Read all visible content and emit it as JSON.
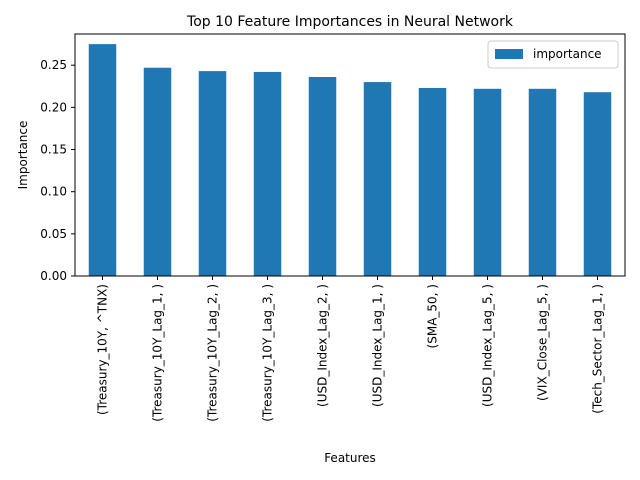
{
  "chart_data": {
    "type": "bar",
    "title": "Top 10 Feature Importances in Neural Network",
    "xlabel": "Features",
    "ylabel": "Importance",
    "ylim": [
      0,
      0.287
    ],
    "yticks": [
      "0.00",
      "0.05",
      "0.10",
      "0.15",
      "0.20",
      "0.25"
    ],
    "grid": false,
    "legend_position": "top-right",
    "bar_color": "#1f77b4",
    "categories": [
      "(Treasury_10Y, ^TNX)",
      "(Treasury_10Y_Lag_1, )",
      "(Treasury_10Y_Lag_2, )",
      "(Treasury_10Y_Lag_3, )",
      "(USD_Index_Lag_2, )",
      "(USD_Index_Lag_1, )",
      "(SMA_50, )",
      "(USD_Index_Lag_5, )",
      "(VIX_Close_Lag_5, )",
      "(Tech_Sector_Lag_1, )"
    ],
    "series": [
      {
        "name": "importance",
        "values": [
          0.275,
          0.247,
          0.243,
          0.242,
          0.236,
          0.23,
          0.223,
          0.222,
          0.222,
          0.218
        ]
      }
    ]
  }
}
